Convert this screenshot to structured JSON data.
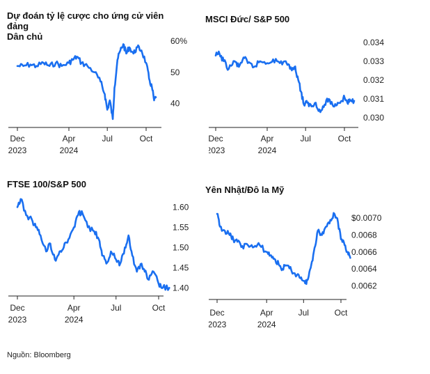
{
  "source": "Nguồn: Bloomberg",
  "chart_data": [
    {
      "type": "line",
      "title": "Dự đoán tỷ lệ cược cho ứng cử viên đảng\nDân chủ",
      "x_ticks": [
        {
          "date": "2023-12-01",
          "label": "Dec",
          "sublabel": "2023"
        },
        {
          "date": "2024-04-01",
          "label": "Apr",
          "sublabel": "2024"
        },
        {
          "date": "2024-07-01",
          "label": "Jul",
          "sublabel": ""
        },
        {
          "date": "2024-10-01",
          "label": "Oct",
          "sublabel": ""
        }
      ],
      "y_ticks": [
        {
          "value": 60,
          "label": "60%"
        },
        {
          "value": 50,
          "label": "50"
        },
        {
          "value": 40,
          "label": "40"
        }
      ],
      "ylim": [
        33,
        62
      ],
      "color": "#1a6ff0",
      "series": [
        {
          "points": [
            [
              "2023-12-01",
              52
            ],
            [
              "2023-12-15",
              52
            ],
            [
              "2024-01-01",
              52.5
            ],
            [
              "2024-01-15",
              52
            ],
            [
              "2024-02-01",
              53
            ],
            [
              "2024-02-15",
              52
            ],
            [
              "2024-03-01",
              53
            ],
            [
              "2024-03-15",
              52
            ],
            [
              "2024-04-01",
              53
            ],
            [
              "2024-04-10",
              54
            ],
            [
              "2024-04-20",
              55
            ],
            [
              "2024-05-01",
              53
            ],
            [
              "2024-05-15",
              52
            ],
            [
              "2024-06-01",
              50
            ],
            [
              "2024-06-15",
              47
            ],
            [
              "2024-06-25",
              43
            ],
            [
              "2024-07-01",
              38
            ],
            [
              "2024-07-07",
              41
            ],
            [
              "2024-07-14",
              35
            ],
            [
              "2024-07-18",
              45
            ],
            [
              "2024-07-25",
              54
            ],
            [
              "2024-08-01",
              57
            ],
            [
              "2024-08-08",
              59
            ],
            [
              "2024-08-15",
              56
            ],
            [
              "2024-08-22",
              58
            ],
            [
              "2024-09-01",
              56
            ],
            [
              "2024-09-10",
              58
            ],
            [
              "2024-09-20",
              57
            ],
            [
              "2024-10-01",
              53
            ],
            [
              "2024-10-08",
              48
            ],
            [
              "2024-10-15",
              45
            ],
            [
              "2024-10-20",
              41
            ],
            [
              "2024-10-24",
              42
            ]
          ]
        }
      ]
    },
    {
      "type": "line",
      "title": "MSCI Đức/ S&P 500",
      "x_ticks": [
        {
          "date": "2023-12-01",
          "label": "Dec",
          "sublabel": "2023"
        },
        {
          "date": "2024-04-01",
          "label": "Apr",
          "sublabel": "2024"
        },
        {
          "date": "2024-07-01",
          "label": "Jul",
          "sublabel": ""
        },
        {
          "date": "2024-10-01",
          "label": "Oct",
          "sublabel": ""
        }
      ],
      "y_ticks": [
        {
          "value": 0.034,
          "label": "0.034"
        },
        {
          "value": 0.033,
          "label": "0.033"
        },
        {
          "value": 0.032,
          "label": "0.032"
        },
        {
          "value": 0.031,
          "label": "0.031"
        },
        {
          "value": 0.03,
          "label": "0.030"
        }
      ],
      "ylim": [
        0.0296,
        0.0344
      ],
      "color": "#1a6ff0",
      "series": [
        {
          "points": [
            [
              "2023-12-01",
              0.0333
            ],
            [
              "2023-12-10",
              0.0334
            ],
            [
              "2023-12-20",
              0.033
            ],
            [
              "2024-01-01",
              0.0326
            ],
            [
              "2024-01-15",
              0.033
            ],
            [
              "2024-01-25",
              0.0327
            ],
            [
              "2024-02-05",
              0.0332
            ],
            [
              "2024-02-15",
              0.0329
            ],
            [
              "2024-03-01",
              0.0327
            ],
            [
              "2024-03-15",
              0.033
            ],
            [
              "2024-04-01",
              0.0329
            ],
            [
              "2024-04-15",
              0.0331
            ],
            [
              "2024-05-01",
              0.0329
            ],
            [
              "2024-05-15",
              0.033
            ],
            [
              "2024-05-25",
              0.0326
            ],
            [
              "2024-06-05",
              0.0327
            ],
            [
              "2024-06-12",
              0.0322
            ],
            [
              "2024-06-20",
              0.0314
            ],
            [
              "2024-06-27",
              0.0307
            ],
            [
              "2024-07-05",
              0.0308
            ],
            [
              "2024-07-15",
              0.0306
            ],
            [
              "2024-07-25",
              0.0308
            ],
            [
              "2024-08-05",
              0.0303
            ],
            [
              "2024-08-15",
              0.0307
            ],
            [
              "2024-08-25",
              0.031
            ],
            [
              "2024-09-05",
              0.0306
            ],
            [
              "2024-09-15",
              0.0308
            ],
            [
              "2024-09-25",
              0.0309
            ],
            [
              "2024-10-01",
              0.0311
            ],
            [
              "2024-10-08",
              0.0308
            ],
            [
              "2024-10-15",
              0.0309
            ],
            [
              "2024-10-24",
              0.0309
            ]
          ]
        }
      ]
    },
    {
      "type": "line",
      "title": "FTSE 100/S&P 500",
      "x_ticks": [
        {
          "date": "2023-12-01",
          "label": "Dec",
          "sublabel": "2023"
        },
        {
          "date": "2024-04-01",
          "label": "Apr",
          "sublabel": "2024"
        },
        {
          "date": "2024-07-01",
          "label": "Jul",
          "sublabel": ""
        },
        {
          "date": "2024-10-01",
          "label": "Oct",
          "sublabel": ""
        }
      ],
      "y_ticks": [
        {
          "value": 1.6,
          "label": "1.60"
        },
        {
          "value": 1.55,
          "label": "1.55"
        },
        {
          "value": 1.5,
          "label": "1.50"
        },
        {
          "value": 1.45,
          "label": "1.45"
        },
        {
          "value": 1.4,
          "label": "1.40"
        }
      ],
      "ylim": [
        1.385,
        1.63
      ],
      "color": "#1a6ff0",
      "series": [
        {
          "points": [
            [
              "2023-12-01",
              1.6
            ],
            [
              "2023-12-08",
              1.62
            ],
            [
              "2023-12-20",
              1.58
            ],
            [
              "2024-01-01",
              1.57
            ],
            [
              "2024-01-10",
              1.55
            ],
            [
              "2024-01-20",
              1.53
            ],
            [
              "2024-02-01",
              1.49
            ],
            [
              "2024-02-10",
              1.51
            ],
            [
              "2024-02-20",
              1.47
            ],
            [
              "2024-03-01",
              1.49
            ],
            [
              "2024-03-10",
              1.5
            ],
            [
              "2024-03-20",
              1.52
            ],
            [
              "2024-04-01",
              1.55
            ],
            [
              "2024-04-10",
              1.58
            ],
            [
              "2024-04-18",
              1.59
            ],
            [
              "2024-05-01",
              1.55
            ],
            [
              "2024-05-15",
              1.54
            ],
            [
              "2024-05-25",
              1.52
            ],
            [
              "2024-06-01",
              1.48
            ],
            [
              "2024-06-10",
              1.46
            ],
            [
              "2024-06-20",
              1.49
            ],
            [
              "2024-07-01",
              1.47
            ],
            [
              "2024-07-10",
              1.46
            ],
            [
              "2024-07-20",
              1.5
            ],
            [
              "2024-07-28",
              1.53
            ],
            [
              "2024-08-05",
              1.48
            ],
            [
              "2024-08-15",
              1.44
            ],
            [
              "2024-08-25",
              1.46
            ],
            [
              "2024-09-01",
              1.44
            ],
            [
              "2024-09-10",
              1.42
            ],
            [
              "2024-09-20",
              1.44
            ],
            [
              "2024-10-01",
              1.41
            ],
            [
              "2024-10-10",
              1.4
            ],
            [
              "2024-10-24",
              1.4
            ]
          ]
        }
      ]
    },
    {
      "type": "line",
      "title": "Yên Nhật/Đô la Mỹ",
      "x_ticks": [
        {
          "date": "2023-12-01",
          "label": "Dec",
          "sublabel": "2023"
        },
        {
          "date": "2024-04-01",
          "label": "Apr",
          "sublabel": "2024"
        },
        {
          "date": "2024-07-01",
          "label": "Jul",
          "sublabel": ""
        },
        {
          "date": "2024-10-01",
          "label": "Oct",
          "sublabel": ""
        }
      ],
      "y_ticks": [
        {
          "value": 0.007,
          "label": "$0.0070"
        },
        {
          "value": 0.0068,
          "label": "0.0068"
        },
        {
          "value": 0.0066,
          "label": "0.0066"
        },
        {
          "value": 0.0064,
          "label": "0.0064"
        },
        {
          "value": 0.0062,
          "label": "0.0062"
        }
      ],
      "ylim": [
        0.00608,
        0.00715
      ],
      "color": "#1a6ff0",
      "series": [
        {
          "points": [
            [
              "2023-12-01",
              0.00705
            ],
            [
              "2023-12-08",
              0.0069
            ],
            [
              "2023-12-20",
              0.00685
            ],
            [
              "2024-01-01",
              0.0068
            ],
            [
              "2024-01-10",
              0.00675
            ],
            [
              "2024-01-20",
              0.00672
            ],
            [
              "2024-02-01",
              0.00667
            ],
            [
              "2024-02-15",
              0.00668
            ],
            [
              "2024-03-01",
              0.00666
            ],
            [
              "2024-03-15",
              0.00668
            ],
            [
              "2024-04-01",
              0.0066
            ],
            [
              "2024-04-10",
              0.00656
            ],
            [
              "2024-04-20",
              0.00652
            ],
            [
              "2024-05-01",
              0.00645
            ],
            [
              "2024-05-10",
              0.0064
            ],
            [
              "2024-05-20",
              0.00644
            ],
            [
              "2024-06-01",
              0.00638
            ],
            [
              "2024-06-15",
              0.00633
            ],
            [
              "2024-06-25",
              0.0063
            ],
            [
              "2024-07-05",
              0.00623
            ],
            [
              "2024-07-12",
              0.00628
            ],
            [
              "2024-07-20",
              0.00645
            ],
            [
              "2024-07-28",
              0.00665
            ],
            [
              "2024-08-05",
              0.00685
            ],
            [
              "2024-08-15",
              0.0068
            ],
            [
              "2024-08-25",
              0.0069
            ],
            [
              "2024-09-05",
              0.00698
            ],
            [
              "2024-09-15",
              0.00705
            ],
            [
              "2024-09-22",
              0.007
            ],
            [
              "2024-10-01",
              0.00675
            ],
            [
              "2024-10-10",
              0.00668
            ],
            [
              "2024-10-18",
              0.0066
            ],
            [
              "2024-10-24",
              0.00653
            ]
          ]
        }
      ]
    }
  ]
}
